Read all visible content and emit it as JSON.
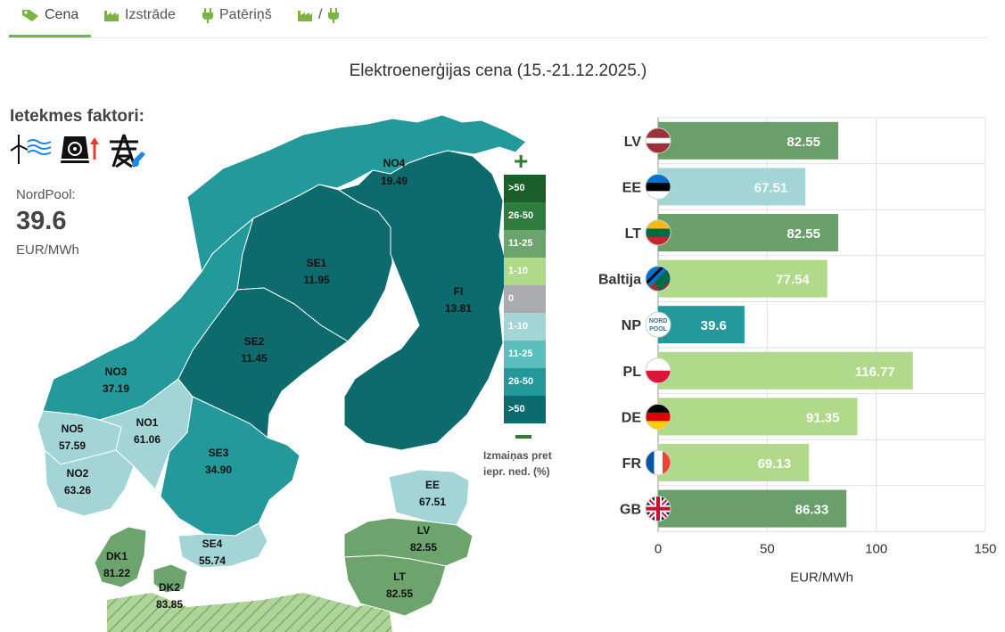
{
  "tabs": [
    {
      "label": "Cena",
      "icon": "tag-icon",
      "active": true
    },
    {
      "label": "Izstrāde",
      "icon": "factory-icon",
      "active": false
    },
    {
      "label": "Patēriņš",
      "icon": "plug-icon",
      "active": false
    },
    {
      "label": "/",
      "icon": "factory-plug-icon",
      "active": false
    }
  ],
  "title": "Elektroenerģijas cena (15.-21.12.2025.)",
  "factors": {
    "title": "Ietekmes faktori:",
    "icons": [
      "wind-turbine-icon",
      "nuclear-plant-up-icon",
      "transmission-tower-repair-icon"
    ]
  },
  "nordpool": {
    "label": "NordPool:",
    "value": "39.6",
    "unit": "EUR/MWh"
  },
  "map": {
    "regions": [
      {
        "id": "NO4",
        "value": "19.49"
      },
      {
        "id": "SE1",
        "value": "11.95"
      },
      {
        "id": "FI",
        "value": "13.81"
      },
      {
        "id": "SE2",
        "value": "11.45"
      },
      {
        "id": "NO3",
        "value": "37.19"
      },
      {
        "id": "NO1",
        "value": "61.06"
      },
      {
        "id": "NO5",
        "value": "57.59"
      },
      {
        "id": "NO2",
        "value": "63.26"
      },
      {
        "id": "SE3",
        "value": "34.90"
      },
      {
        "id": "SE4",
        "value": "55.74"
      },
      {
        "id": "EE",
        "value": "67.51"
      },
      {
        "id": "LV",
        "value": "82.55"
      },
      {
        "id": "LT",
        "value": "82.55"
      },
      {
        "id": "DK1",
        "value": "81.22"
      },
      {
        "id": "DK2",
        "value": "83.85"
      }
    ],
    "colors": {
      "dark_teal": "#0d6b6e",
      "teal": "#23999b",
      "light_teal": "#a3d5d6",
      "green": "#6da36d",
      "hatch_green": "#aed49a"
    }
  },
  "legend": {
    "plus": "+",
    "items": [
      {
        "label": ">50",
        "color": "#1a5e2c"
      },
      {
        "label": "26-50",
        "color": "#2f7d3e"
      },
      {
        "label": "11-25",
        "color": "#6da36d"
      },
      {
        "label": "1-10",
        "color": "#b0d98a"
      },
      {
        "label": "0",
        "color": "#a9abae"
      },
      {
        "label": "1-10",
        "color": "#a3d5d6"
      },
      {
        "label": "11-25",
        "color": "#5cbdbd"
      },
      {
        "label": "26-50",
        "color": "#23999b"
      },
      {
        "label": ">50",
        "color": "#0d6b6e"
      }
    ],
    "note_line1": "Izmaiņas pret",
    "note_line2": "iepr. ned. (%)"
  },
  "chart_data": {
    "type": "bar",
    "orientation": "horizontal",
    "categories": [
      "LV",
      "EE",
      "LT",
      "Baltija",
      "NP",
      "PL",
      "DE",
      "FR",
      "GB"
    ],
    "values": [
      82.55,
      67.51,
      82.55,
      77.54,
      39.6,
      116.77,
      91.35,
      69.13,
      86.33
    ],
    "value_labels": [
      "82.55",
      "67.51",
      "82.55",
      "77.54",
      "39.6",
      "116.77",
      "91.35",
      "69.13",
      "86.33"
    ],
    "bar_colors": [
      "#6a9e6a",
      "#a3d5d6",
      "#6a9e6a",
      "#b0d98a",
      "#23999b",
      "#b0d98a",
      "#b0d98a",
      "#b0d98a",
      "#6a9e6a"
    ],
    "flags": [
      "flag-latvia-icon",
      "flag-estonia-icon",
      "flag-lithuania-icon",
      "flag-baltic-icon",
      "nordpool-logo-icon",
      "flag-poland-icon",
      "flag-germany-icon",
      "flag-france-icon",
      "flag-uk-icon"
    ],
    "xlabel": "EUR/MWh",
    "xlim": [
      0,
      150
    ],
    "xticks": [
      "0",
      "50",
      "100",
      "150"
    ],
    "grid": true
  }
}
